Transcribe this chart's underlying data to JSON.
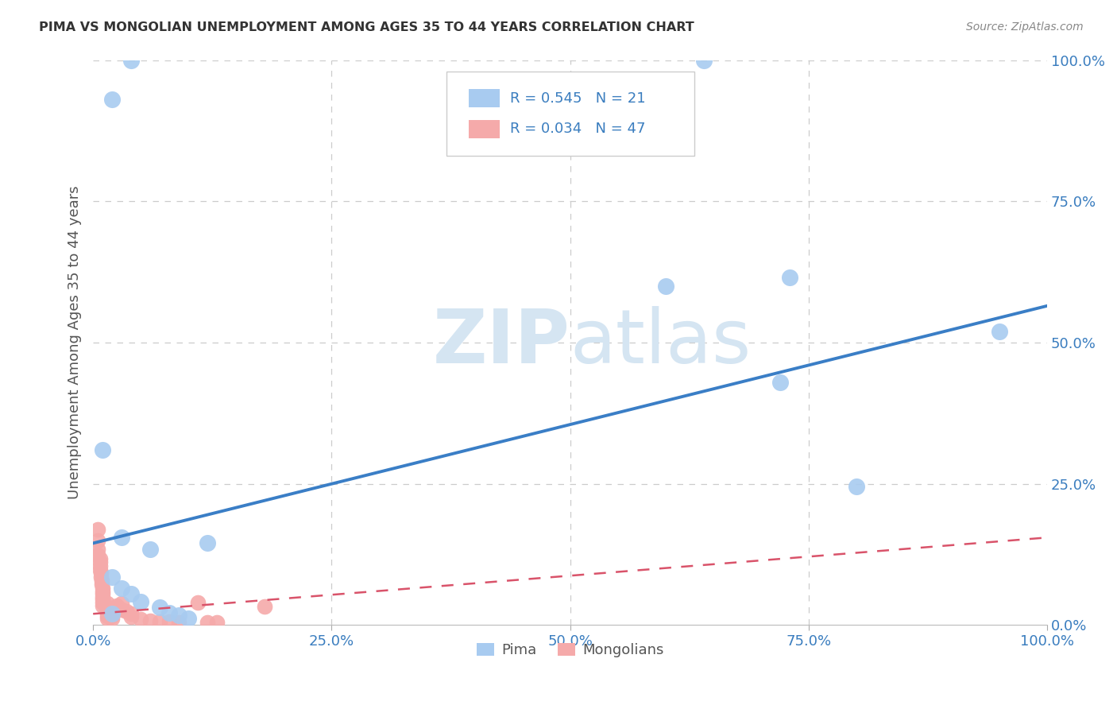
{
  "title": "PIMA VS MONGOLIAN UNEMPLOYMENT AMONG AGES 35 TO 44 YEARS CORRELATION CHART",
  "source": "Source: ZipAtlas.com",
  "ylabel": "Unemployment Among Ages 35 to 44 years",
  "xlim": [
    0,
    1
  ],
  "ylim": [
    0,
    1
  ],
  "xticks": [
    0.0,
    0.25,
    0.5,
    0.75,
    1.0
  ],
  "yticks": [
    0.0,
    0.25,
    0.5,
    0.75,
    1.0
  ],
  "xticklabels": [
    "0.0%",
    "25.0%",
    "50.0%",
    "75.0%",
    "100.0%"
  ],
  "yticklabels": [
    "0.0%",
    "25.0%",
    "50.0%",
    "75.0%",
    "100.0%"
  ],
  "pima_R": 0.545,
  "pima_N": 21,
  "mongolian_R": 0.034,
  "mongolian_N": 47,
  "pima_color": "#A8CBF0",
  "mongolian_color": "#F5AAAA",
  "trendline_pima_color": "#3A7EC6",
  "trendline_mongolian_color": "#D9536A",
  "background_color": "#ffffff",
  "watermark_color": "#D5E5F2",
  "pima_scatter": [
    [
      0.04,
      1.0
    ],
    [
      0.64,
      1.0
    ],
    [
      0.02,
      0.93
    ],
    [
      0.01,
      0.31
    ],
    [
      0.03,
      0.155
    ],
    [
      0.06,
      0.135
    ],
    [
      0.02,
      0.085
    ],
    [
      0.03,
      0.065
    ],
    [
      0.04,
      0.055
    ],
    [
      0.05,
      0.042
    ],
    [
      0.07,
      0.032
    ],
    [
      0.08,
      0.022
    ],
    [
      0.02,
      0.02
    ],
    [
      0.09,
      0.018
    ],
    [
      0.1,
      0.012
    ],
    [
      0.12,
      0.145
    ],
    [
      0.6,
      0.6
    ],
    [
      0.73,
      0.615
    ],
    [
      0.72,
      0.43
    ],
    [
      0.8,
      0.245
    ],
    [
      0.95,
      0.52
    ]
  ],
  "mongolian_scatter": [
    [
      0.005,
      0.17
    ],
    [
      0.005,
      0.15
    ],
    [
      0.005,
      0.135
    ],
    [
      0.005,
      0.125
    ],
    [
      0.007,
      0.118
    ],
    [
      0.007,
      0.112
    ],
    [
      0.007,
      0.105
    ],
    [
      0.007,
      0.098
    ],
    [
      0.008,
      0.092
    ],
    [
      0.008,
      0.085
    ],
    [
      0.009,
      0.078
    ],
    [
      0.009,
      0.072
    ],
    [
      0.01,
      0.066
    ],
    [
      0.01,
      0.06
    ],
    [
      0.01,
      0.055
    ],
    [
      0.01,
      0.05
    ],
    [
      0.01,
      0.045
    ],
    [
      0.01,
      0.04
    ],
    [
      0.01,
      0.035
    ],
    [
      0.015,
      0.038
    ],
    [
      0.015,
      0.032
    ],
    [
      0.015,
      0.028
    ],
    [
      0.015,
      0.024
    ],
    [
      0.015,
      0.02
    ],
    [
      0.015,
      0.016
    ],
    [
      0.015,
      0.012
    ],
    [
      0.02,
      0.012
    ],
    [
      0.02,
      0.016
    ],
    [
      0.02,
      0.02
    ],
    [
      0.02,
      0.025
    ],
    [
      0.02,
      0.03
    ],
    [
      0.025,
      0.035
    ],
    [
      0.025,
      0.03
    ],
    [
      0.03,
      0.038
    ],
    [
      0.03,
      0.028
    ],
    [
      0.035,
      0.025
    ],
    [
      0.04,
      0.02
    ],
    [
      0.04,
      0.015
    ],
    [
      0.05,
      0.01
    ],
    [
      0.06,
      0.008
    ],
    [
      0.07,
      0.006
    ],
    [
      0.08,
      0.006
    ],
    [
      0.09,
      0.005
    ],
    [
      0.11,
      0.04
    ],
    [
      0.12,
      0.005
    ],
    [
      0.13,
      0.005
    ],
    [
      0.18,
      0.033
    ]
  ],
  "pima_trendline": [
    [
      0.0,
      0.145
    ],
    [
      1.0,
      0.565
    ]
  ],
  "mongolian_trendline": [
    [
      0.0,
      0.02
    ],
    [
      1.0,
      0.155
    ]
  ],
  "legend_labels": [
    "Pima",
    "Mongolians"
  ]
}
